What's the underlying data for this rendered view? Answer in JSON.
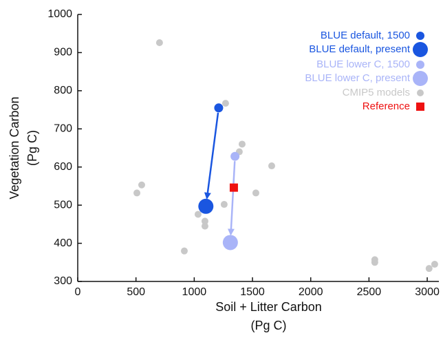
{
  "chart_data": {
    "type": "scatter",
    "x_label": [
      "Soil + Litter Carbon",
      "(Pg C)"
    ],
    "y_label": [
      "Vegetation Carbon",
      "(Pg C)"
    ],
    "xlim": [
      0,
      3100
    ],
    "xticks": [
      0,
      500,
      1000,
      1500,
      2000,
      2500,
      3000
    ],
    "ylim": [
      300,
      1000
    ],
    "yticks": [
      300,
      400,
      500,
      600,
      700,
      800,
      900,
      1000
    ],
    "series": [
      {
        "name": "CMIP5 models",
        "color": "#c8c8c8",
        "marker": "circle",
        "x": [
          702,
          1269,
          1411,
          1387,
          1665,
          549,
          508,
          1529,
          1257,
          1033,
          1092,
          1092,
          915,
          2550,
          2550,
          3016,
          3064
        ],
        "values": [
          926,
          767,
          660,
          640,
          603,
          553,
          532,
          532,
          502,
          476,
          458,
          445,
          380,
          357,
          350,
          334,
          345
        ]
      },
      {
        "name": "BLUE default, 1500",
        "color": "#1a56e0",
        "marker": "circle",
        "x": [
          1210
        ],
        "values": [
          755
        ]
      },
      {
        "name": "BLUE default, present",
        "color": "#1a56e0",
        "marker": "circle",
        "x": [
          1100
        ],
        "values": [
          497
        ]
      },
      {
        "name": "BLUE lower C, 1500",
        "color": "#a9b4f8",
        "marker": "circle",
        "x": [
          1350
        ],
        "values": [
          628
        ]
      },
      {
        "name": "BLUE lower C, present",
        "color": "#a9b4f8",
        "marker": "circle",
        "x": [
          1310
        ],
        "values": [
          402
        ]
      },
      {
        "name": "Reference",
        "color": "#ee1111",
        "marker": "square",
        "x": [
          1340
        ],
        "values": [
          546
        ]
      }
    ]
  }
}
